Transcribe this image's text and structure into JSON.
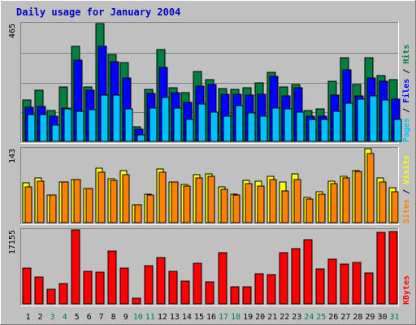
{
  "colors": {
    "page_bg": "#c0c0c0",
    "title": "#0000cc",
    "pages": "#00c0ff",
    "files": "#0000ff",
    "hits": "#008040",
    "visits": "#ffff00",
    "sites": "#ff8000",
    "kbytes": "#ff0000",
    "weekday_label": "#000000",
    "weekend_label": "#008040"
  },
  "chart_data": {
    "type": "bar",
    "title": "Daily usage for January 2004",
    "categories": [
      "1",
      "2",
      "3",
      "4",
      "5",
      "6",
      "7",
      "8",
      "9",
      "10",
      "11",
      "12",
      "13",
      "14",
      "15",
      "16",
      "17",
      "18",
      "19",
      "20",
      "21",
      "22",
      "23",
      "24",
      "25",
      "26",
      "27",
      "28",
      "29",
      "30",
      "31"
    ],
    "weekend_days": [
      "3",
      "4",
      "10",
      "11",
      "17",
      "18",
      "24",
      "25",
      "31"
    ],
    "panels": [
      {
        "id": "usage",
        "ymax_label": "465",
        "ylim": [
          0,
          465
        ],
        "side_labels": [
          {
            "text": "Pages",
            "color": "#00c0ff"
          },
          {
            "text": " / ",
            "color": "#000000"
          },
          {
            "text": "Files",
            "color": "#0000ff"
          },
          {
            "text": " / ",
            "color": "#000000"
          },
          {
            "text": "Hits",
            "color": "#008040"
          }
        ],
        "series": [
          {
            "name": "Hits",
            "color": "#008040",
            "values": [
              164,
              203,
              122,
              215,
              375,
              216,
              465,
              343,
              312,
              58,
              204,
              361,
              213,
              191,
              276,
              245,
              207,
              205,
              213,
              230,
              274,
              216,
              223,
              122,
              127,
              238,
              331,
              223,
              330,
              259,
              243
            ]
          },
          {
            "name": "Files",
            "color": "#0000ff",
            "values": [
              135,
              137,
              98,
              133,
              322,
              202,
              375,
              315,
              251,
              48,
              189,
              293,
              191,
              153,
              219,
              224,
              187,
              186,
              182,
              186,
              255,
              180,
              213,
              98,
              98,
              184,
              282,
              180,
              251,
              236,
              166
            ]
          },
          {
            "name": "Pages",
            "color": "#00c0ff",
            "values": [
              105,
              106,
              63,
              127,
              118,
              124,
              184,
              184,
              128,
              27,
              133,
              174,
              133,
              85,
              149,
              117,
              98,
              141,
              113,
              101,
              133,
              128,
              114,
              85,
              85,
              120,
              151,
              166,
              181,
              164,
              88
            ]
          }
        ]
      },
      {
        "id": "visits",
        "ymax_label": "143",
        "ylim": [
          0,
          143
        ],
        "side_labels": [
          {
            "text": "Sites",
            "color": "#ff8000"
          },
          {
            "text": " / ",
            "color": "#000000"
          },
          {
            "text": "Visits",
            "color": "#ffff00"
          }
        ],
        "series": [
          {
            "name": "Visits",
            "color": "#ffff00",
            "values": [
              77,
              87,
              53,
              79,
              83,
              66,
              105,
              85,
              100,
              34,
              55,
              103,
              79,
              74,
              92,
              94,
              69,
              55,
              81,
              80,
              89,
              79,
              94,
              49,
              59,
              80,
              90,
              100,
              143,
              86,
              68
            ]
          },
          {
            "name": "Sites",
            "color": "#ff8000",
            "values": [
              69,
              80,
              53,
              79,
              83,
              66,
              98,
              82,
              93,
              34,
              53,
              98,
              78,
              71,
              86,
              89,
              65,
              53,
              75,
              71,
              84,
              61,
              83,
              46,
              55,
              75,
              86,
              99,
              133,
              79,
              60
            ]
          }
        ]
      },
      {
        "id": "kbytes",
        "ymax_label": "17155",
        "ylim": [
          0,
          17155
        ],
        "side_labels": [
          {
            "text": "KBytes",
            "color": "#ff0000"
          }
        ],
        "series": [
          {
            "name": "KBytes",
            "color": "#ff0000",
            "values": [
              8220,
              6170,
              3410,
              4730,
              17155,
              7580,
              7300,
              12340,
              8300,
              1380,
              8810,
              10720,
              7460,
              5300,
              9520,
              5100,
              11830,
              4050,
              3920,
              7040,
              6830,
              11860,
              12910,
              14830,
              8130,
              10450,
              9200,
              9580,
              7130,
              16520,
              16800
            ]
          }
        ]
      }
    ]
  }
}
